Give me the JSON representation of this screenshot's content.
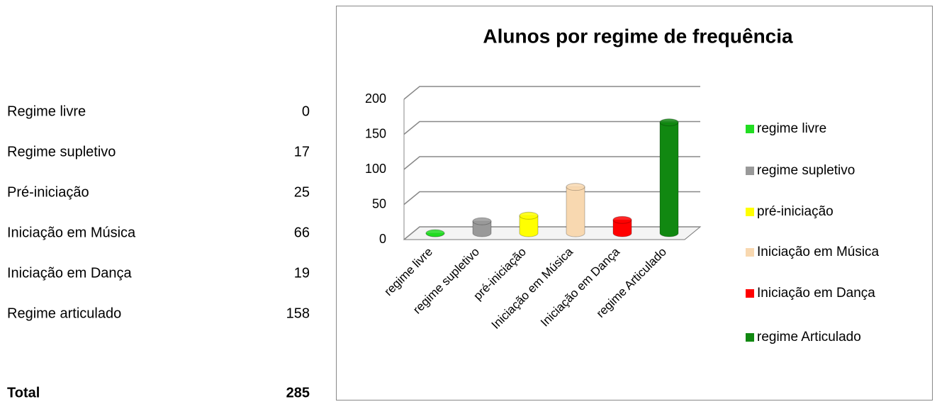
{
  "table": {
    "rows": [
      [
        "Regime livre",
        0
      ],
      [
        "Regime supletivo",
        17
      ],
      [
        "Pré-iniciação",
        25
      ],
      [
        "Iniciação em Música",
        66
      ],
      [
        "Iniciação em Dança",
        19
      ],
      [
        "Regime articulado",
        158
      ]
    ],
    "total": [
      "Total",
      285
    ]
  },
  "chart_data": {
    "type": "bar3d",
    "title": "Alunos por regime de frequência",
    "categories": [
      "regime livre",
      "regime supletivo",
      "pré-iniciação",
      "Iniciação em Música",
      "Iniciação em Dança",
      "regime Articulado"
    ],
    "values": [
      0,
      17,
      25,
      66,
      19,
      158
    ],
    "colors": [
      "#22dd22",
      "#999999",
      "#ffff00",
      "#f8d8b0",
      "#ff0000",
      "#118811"
    ],
    "ylim": [
      0,
      200
    ],
    "yticks": [
      0,
      50,
      100,
      150,
      200
    ],
    "grid": true,
    "legend": "right"
  }
}
